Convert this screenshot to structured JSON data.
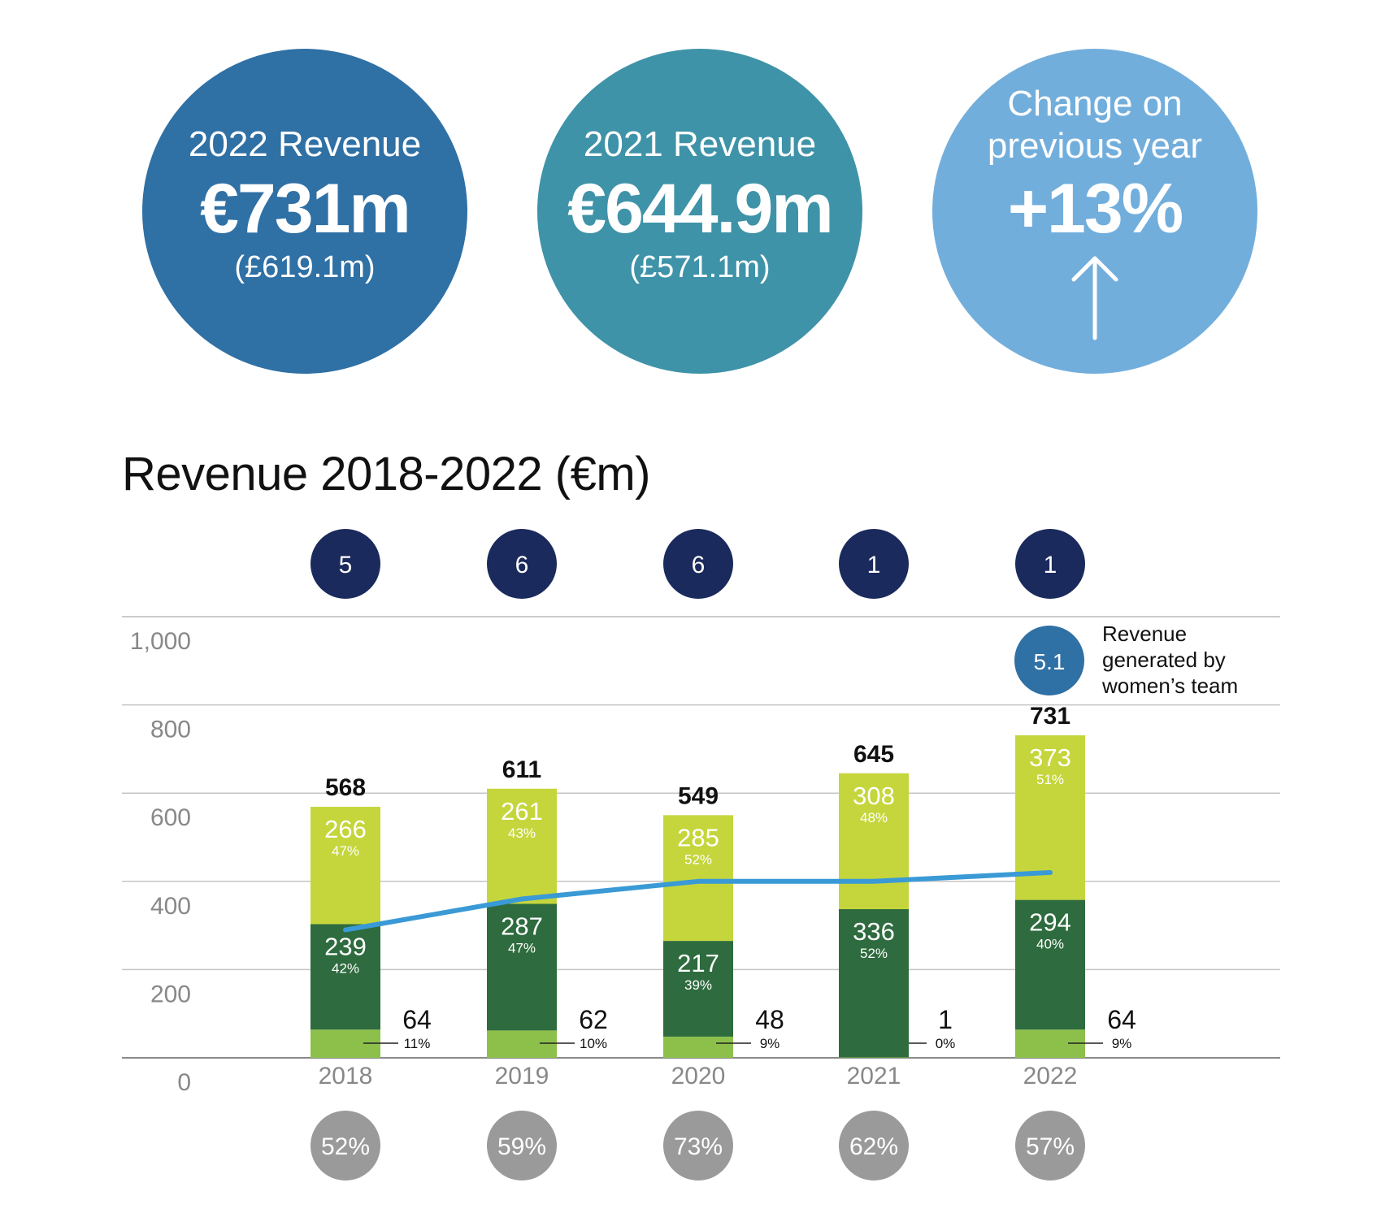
{
  "kpis": [
    {
      "label": "2022 Revenue",
      "value": "€731m",
      "sub": "(£619.1m)"
    },
    {
      "label": "2021 Revenue",
      "value": "€644.9m",
      "sub": "(£571.1m)"
    },
    {
      "label_line1": "Change on",
      "label_line2": "previous year",
      "value": "+13%"
    }
  ],
  "chart_title": "Revenue 2018-2022 (€m)",
  "colors": {
    "light_green": "#c5d63c",
    "dark_green": "#2e6b3e",
    "mid_green": "#8cc04b",
    "line_blue": "#3a9ad6",
    "navy": "#1b2a5c",
    "grey_badge": "#9a9a9a",
    "kpi_blue": "#2f70a5",
    "kpi_teal": "#3f93a8",
    "kpi_light_blue": "#72aedc"
  },
  "legend": {
    "bubble_value": "5.1",
    "text_lines": [
      "Revenue",
      "generated by",
      "women’s team"
    ]
  },
  "chart_data": {
    "type": "bar",
    "title": "Revenue 2018-2022 (€m)",
    "categories": [
      "2018",
      "2019",
      "2020",
      "2021",
      "2022"
    ],
    "y_ticks": [
      "0",
      "200",
      "400",
      "600",
      "800",
      "1,000"
    ],
    "ylim": [
      0,
      1000
    ],
    "totals": [
      "568",
      "611",
      "549",
      "645",
      "731"
    ],
    "top_badges": [
      "5",
      "6",
      "6",
      "1",
      "1"
    ],
    "bottom_badges": [
      "52%",
      "59%",
      "73%",
      "62%",
      "57%"
    ],
    "series": [
      {
        "values": [
          64,
          62,
          48,
          1,
          64
        ],
        "value_labels": [
          "64",
          "62",
          "48",
          "1",
          "64"
        ],
        "pct_labels": [
          "11%",
          "10%",
          "9%",
          "0%",
          "9%"
        ]
      },
      {
        "values": [
          239,
          287,
          217,
          336,
          294
        ],
        "value_labels": [
          "239",
          "287",
          "217",
          "336",
          "294"
        ],
        "pct_labels": [
          "42%",
          "47%",
          "39%",
          "52%",
          "40%"
        ]
      },
      {
        "values": [
          266,
          261,
          285,
          308,
          373
        ],
        "value_labels": [
          "266",
          "261",
          "285",
          "308",
          "373"
        ],
        "pct_labels": [
          "47%",
          "43%",
          "52%",
          "48%",
          "51%"
        ]
      }
    ],
    "line": {
      "values": [
        2.9,
        3.6,
        4.0,
        4.0,
        4.2
      ]
    }
  }
}
